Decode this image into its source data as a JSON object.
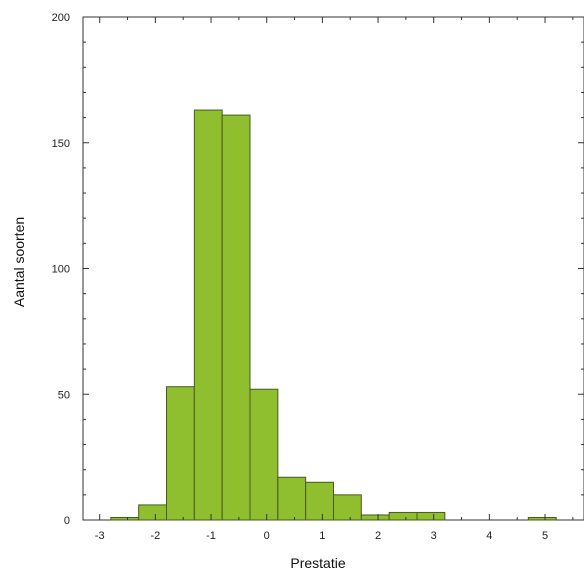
{
  "chart_data": {
    "type": "histogram",
    "title": "",
    "xlabel": "Prestatie",
    "ylabel": "Aantal soorten",
    "xlim": [
      -3.3,
      5.7
    ],
    "ylim": [
      0,
      200
    ],
    "xticks": [
      -3,
      -2,
      -1,
      0,
      1,
      2,
      3,
      4,
      5
    ],
    "yticks": [
      0,
      50,
      100,
      150,
      200
    ],
    "xtick_labels": [
      "-3",
      "-2",
      "-1",
      "0",
      "1",
      "2",
      "3",
      "4",
      "5"
    ],
    "ytick_labels": [
      "0",
      "50",
      "100",
      "150",
      "200"
    ],
    "bar_color": "#8fbe2f",
    "bar_edge_color": "#4a5a20",
    "grid": false,
    "bins": [
      {
        "x0": -2.8,
        "x1": -2.3,
        "value": 1
      },
      {
        "x0": -2.3,
        "x1": -1.8,
        "value": 6
      },
      {
        "x0": -1.8,
        "x1": -1.3,
        "value": 53
      },
      {
        "x0": -1.3,
        "x1": -0.8,
        "value": 163
      },
      {
        "x0": -0.8,
        "x1": -0.3,
        "value": 161
      },
      {
        "x0": -0.3,
        "x1": 0.2,
        "value": 52
      },
      {
        "x0": 0.2,
        "x1": 0.7,
        "value": 17
      },
      {
        "x0": 0.7,
        "x1": 1.2,
        "value": 15
      },
      {
        "x0": 1.2,
        "x1": 1.7,
        "value": 10
      },
      {
        "x0": 1.7,
        "x1": 2.2,
        "value": 2
      },
      {
        "x0": 2.2,
        "x1": 2.7,
        "value": 3
      },
      {
        "x0": 2.7,
        "x1": 3.2,
        "value": 3
      },
      {
        "x0": 4.7,
        "x1": 5.2,
        "value": 1
      }
    ]
  }
}
